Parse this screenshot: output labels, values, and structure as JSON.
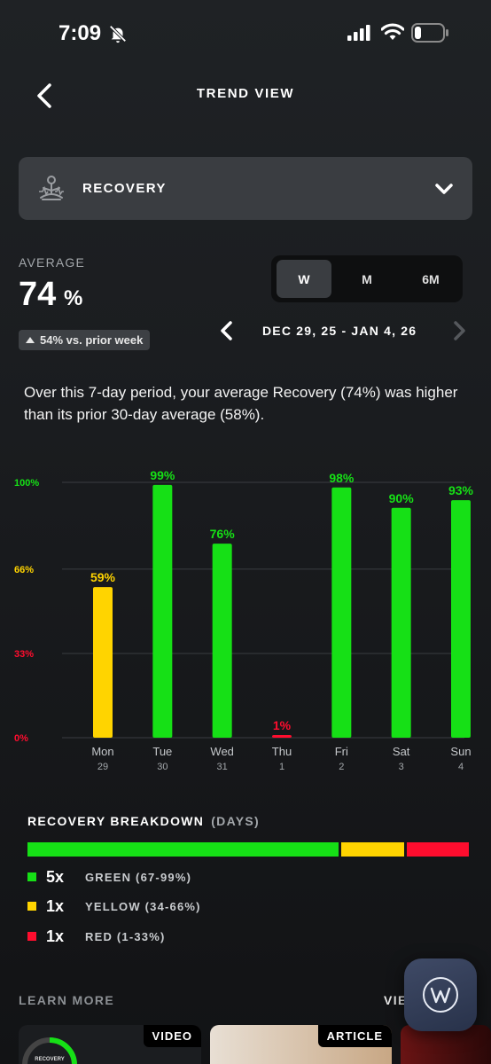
{
  "status_bar": {
    "time": "7:09"
  },
  "header": {
    "title": "TREND VIEW"
  },
  "metric_selector": {
    "label": "RECOVERY"
  },
  "average": {
    "label": "AVERAGE",
    "value": "74",
    "unit": "%",
    "comparison": "54% vs. prior week"
  },
  "period_tabs": [
    {
      "label": "W",
      "active": true
    },
    {
      "label": "M",
      "active": false
    },
    {
      "label": "6M",
      "active": false
    }
  ],
  "date_range": "DEC 29, 25 - JAN 4, 26",
  "summary": "Over this 7-day period, your average Recovery (74%) was higher than its prior 30-day average (58%).",
  "colors": {
    "green": "#16e016",
    "yellow": "#ffd400",
    "red": "#ff0d2e",
    "gridline": "#3a3d41"
  },
  "chart_data": {
    "type": "bar",
    "categories": [
      "Mon",
      "Tue",
      "Wed",
      "Thu",
      "Fri",
      "Sat",
      "Sun"
    ],
    "sub_categories": [
      "29",
      "30",
      "31",
      "1",
      "2",
      "3",
      "4"
    ],
    "values": [
      59,
      99,
      76,
      1,
      98,
      90,
      93
    ],
    "value_labels": [
      "59%",
      "99%",
      "76%",
      "1%",
      "98%",
      "90%",
      "93%"
    ],
    "bar_colors": [
      "yellow",
      "green",
      "green",
      "red",
      "green",
      "green",
      "green"
    ],
    "yticks": [
      {
        "value": 100,
        "label": "100%",
        "color": "green"
      },
      {
        "value": 66,
        "label": "66%",
        "color": "yellow"
      },
      {
        "value": 33,
        "label": "33%",
        "color": "red"
      },
      {
        "value": 0,
        "label": "0%",
        "color": "red"
      }
    ],
    "ylim": [
      0,
      100
    ],
    "grid": true
  },
  "breakdown": {
    "title": "RECOVERY BREAKDOWN",
    "unit": "(DAYS)",
    "segments": [
      {
        "color": "green",
        "count": 5
      },
      {
        "color": "yellow",
        "count": 1
      },
      {
        "color": "red",
        "count": 1
      }
    ],
    "rows": [
      {
        "color": "green",
        "count": "5x",
        "label": "GREEN (67-99%)"
      },
      {
        "color": "yellow",
        "count": "1x",
        "label": "YELLOW (34-66%)"
      },
      {
        "color": "red",
        "count": "1x",
        "label": "RED (1-33%)"
      }
    ]
  },
  "learn_more": {
    "title": "LEARN MORE",
    "view_all": "VIEW",
    "cards": [
      {
        "tag": "VIDEO",
        "caption": "RECOVERY"
      },
      {
        "tag": "ARTICLE"
      },
      {
        "tag": ""
      }
    ]
  },
  "icons": {
    "bell": "bell-slash-icon",
    "back": "chevron-left-icon",
    "metric": "meditation-icon",
    "dropdown": "chevron-down-icon",
    "assistant": "whoop-w-icon"
  }
}
